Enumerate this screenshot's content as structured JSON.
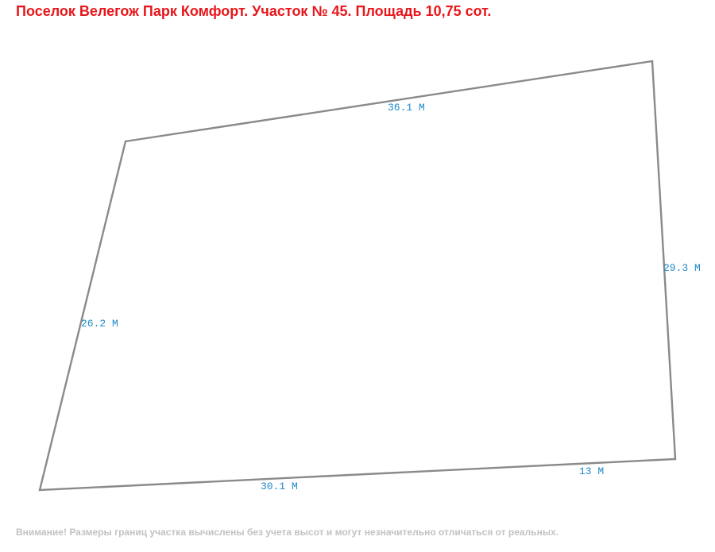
{
  "title": "Поселок Велегож Парк Комфорт. Участок № 45. Площадь 10,75 сот.",
  "plot": {
    "line_color": "#8a8a8a",
    "label_color": "#1e88c8",
    "edges": {
      "top": "36.1 М",
      "right": "29.3 М",
      "bottom_right": "13 М",
      "bottom_left": "30.1 М",
      "left": "26.2 М"
    }
  },
  "footer": "Внимание! Размеры границ участка вычислены без учета высот и могут незначительно отличаться от реальных."
}
